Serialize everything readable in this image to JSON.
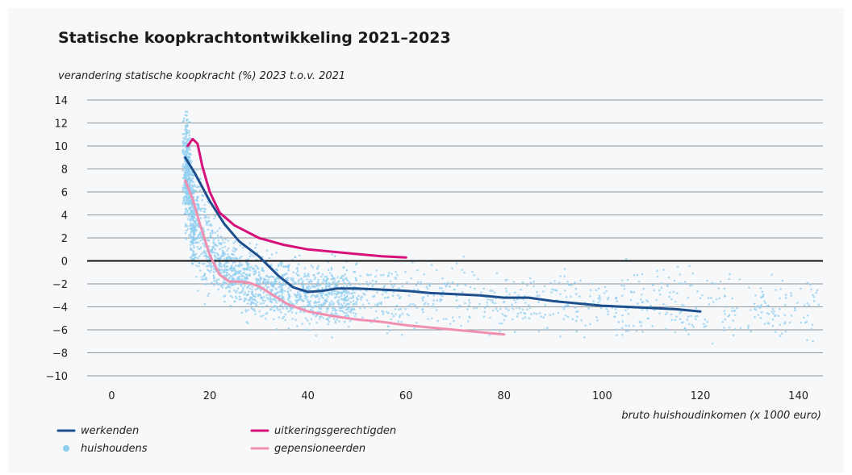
{
  "chart_data": {
    "type": "scatter",
    "title": "Statische koopkrachtontwikkeling 2021–2023",
    "ylabel": "verandering statische koopkracht (%) 2023 t.o.v. 2021",
    "xlabel": "bruto huishoudinkomen (x 1000 euro)",
    "xlim": [
      -5,
      145
    ],
    "ylim": [
      -10,
      14
    ],
    "x_ticks": [
      0,
      20,
      40,
      60,
      80,
      100,
      120,
      140
    ],
    "y_ticks": [
      14,
      12,
      10,
      8,
      6,
      4,
      2,
      0,
      -2,
      -4,
      -6,
      -8,
      -10
    ],
    "grid": "horizontal",
    "zero_line": true,
    "colors": {
      "werkenden": "#1d4f8c",
      "uitkeringsgerechtigden": "#d6127a",
      "gepensioneerden": "#f08fb0",
      "huishoudens": "#8dcdf0"
    },
    "series": [
      {
        "name": "werkenden",
        "type": "line",
        "x": [
          15,
          17,
          20,
          23,
          26,
          30,
          34,
          37,
          40,
          43,
          46,
          50,
          55,
          60,
          65,
          70,
          75,
          80,
          85,
          90,
          95,
          100,
          105,
          110,
          115,
          120
        ],
        "y": [
          9.0,
          7.6,
          5.2,
          3.2,
          1.7,
          0.4,
          -1.3,
          -2.3,
          -2.7,
          -2.6,
          -2.4,
          -2.4,
          -2.5,
          -2.6,
          -2.8,
          -2.9,
          -3.0,
          -3.2,
          -3.2,
          -3.5,
          -3.7,
          -3.9,
          -4.0,
          -4.1,
          -4.2,
          -4.4
        ]
      },
      {
        "name": "uitkeringsgerechtigden",
        "type": "line",
        "x": [
          15.5,
          16.5,
          17.5,
          18.5,
          20,
          22,
          25,
          30,
          35,
          40,
          45,
          50,
          55,
          60
        ],
        "y": [
          10.0,
          10.6,
          10.2,
          8.2,
          6.0,
          4.2,
          3.1,
          2.0,
          1.4,
          1.0,
          0.8,
          0.6,
          0.4,
          0.3
        ]
      },
      {
        "name": "gepensioneerden",
        "type": "line",
        "x": [
          15,
          16.5,
          18,
          20,
          22,
          24,
          26,
          28,
          30,
          33,
          36,
          40,
          45,
          50,
          55,
          60,
          65,
          70,
          75,
          80
        ],
        "y": [
          7.0,
          5.4,
          3.2,
          0.5,
          -1.2,
          -1.8,
          -1.8,
          -1.9,
          -2.2,
          -3.0,
          -3.8,
          -4.4,
          -4.8,
          -5.1,
          -5.3,
          -5.6,
          -5.8,
          -6.0,
          -6.2,
          -6.4
        ]
      },
      {
        "name": "huishoudens",
        "type": "scatter"
      }
    ]
  }
}
